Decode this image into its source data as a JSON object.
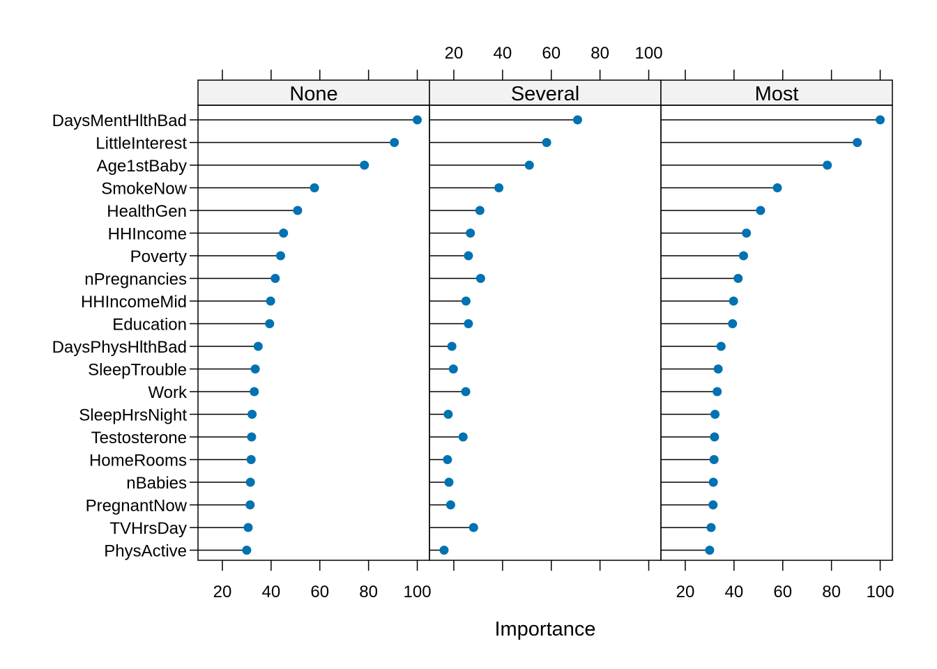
{
  "chart_data": {
    "type": "dotplot",
    "xlabel": "Importance",
    "xlim": [
      10,
      105
    ],
    "ticks": [
      20,
      40,
      60,
      80,
      100
    ],
    "point_color": "#0072B2",
    "variables": [
      "DaysMentHlthBad",
      "LittleInterest",
      "Age1stBaby",
      "SmokeNow",
      "HealthGen",
      "HHIncome",
      "Poverty",
      "nPregnancies",
      "HHIncomeMid",
      "Education",
      "DaysPhysHlthBad",
      "SleepTrouble",
      "Work",
      "SleepHrsNight",
      "Testosterone",
      "HomeRooms",
      "nBabies",
      "PregnantNow",
      "TVHrsDay",
      "PhysActive"
    ],
    "panels": [
      {
        "name": "None",
        "values": [
          100,
          90.6,
          78.3,
          57.8,
          50.9,
          45.1,
          43.9,
          41.7,
          39.8,
          39.4,
          34.7,
          33.5,
          33.1,
          32.2,
          32,
          31.8,
          31.5,
          31.4,
          30.6,
          30
        ]
      },
      {
        "name": "Several",
        "values": [
          70.8,
          58.1,
          51,
          38.5,
          30.7,
          26.8,
          26,
          31,
          25,
          26,
          19.2,
          19.8,
          24.9,
          17.7,
          23.8,
          17.4,
          18,
          18.7,
          28.1,
          16
        ]
      },
      {
        "name": "Most",
        "values": [
          100,
          90.6,
          78.3,
          57.8,
          50.9,
          45.1,
          43.9,
          41.7,
          39.8,
          39.4,
          34.7,
          33.5,
          33.1,
          32.2,
          32,
          31.8,
          31.5,
          31.4,
          30.6,
          30
        ]
      }
    ]
  }
}
